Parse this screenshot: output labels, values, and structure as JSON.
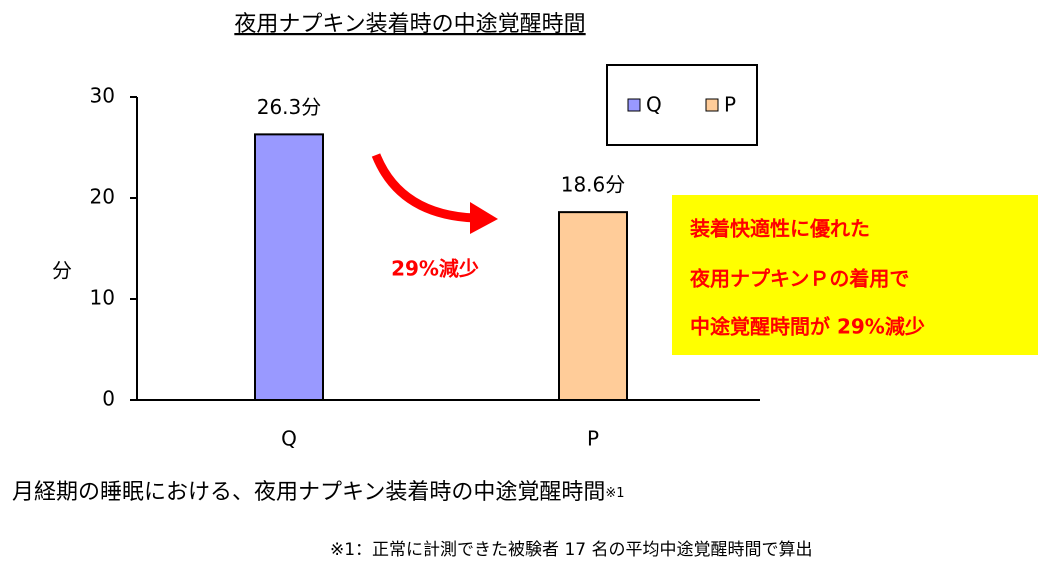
{
  "chart_data": {
    "type": "bar",
    "title": "夜用ナプキン装着時の中途覚醒時間",
    "y_label": "分",
    "categories": [
      "Q",
      "P"
    ],
    "values": [
      26.3,
      18.6
    ],
    "value_labels": [
      "26.3分",
      "18.6分"
    ],
    "colors": [
      "#9999ff",
      "#ffcc99"
    ],
    "ylim": [
      0,
      30
    ],
    "yticks": [
      0,
      10,
      20,
      30
    ],
    "grid": false,
    "legend": "top-right",
    "arrow_label": "29%減少",
    "callout": [
      "装着快適性に優れた",
      "夜用ナプキンＰの着用で",
      "中途覚醒時間が 29%減少"
    ],
    "caption": "月経期の睡眠における、夜用ナプキン装着時の中途覚醒時間",
    "caption_note": "※1",
    "footnote": "※1：正常に計測できた被験者 17 名の平均中途覚醒時間で算出"
  }
}
